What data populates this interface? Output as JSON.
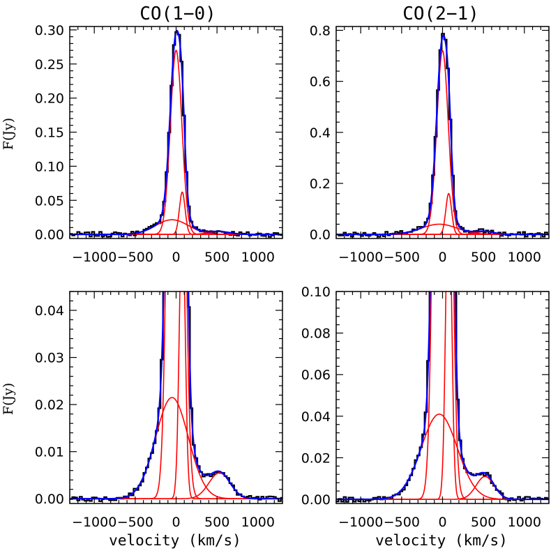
{
  "titles": {
    "left": "CO(1−0)",
    "right": "CO(2−1)"
  },
  "axis_labels": {
    "ylabel": "F(Jy)",
    "xlabel": "velocity (km/s)"
  },
  "colors": {
    "data": "#000000",
    "components": "#ff0000",
    "total": "#0000ff",
    "axes": "#000000"
  },
  "chart_data": [
    {
      "type": "line",
      "panel": "top-left",
      "title": "CO(1−0)",
      "ylabel": "F(Jy)",
      "xlabel": "",
      "xlim": [
        -1300,
        1300
      ],
      "ylim": [
        -0.006,
        0.305
      ],
      "xticks": [
        -1000,
        -500,
        0,
        500,
        1000
      ],
      "yticks": [
        0.0,
        0.05,
        0.1,
        0.15,
        0.2,
        0.25,
        0.3
      ],
      "ytick_labels": [
        "0.00",
        "0.05",
        "0.10",
        "0.15",
        "0.20",
        "0.25",
        "0.30"
      ],
      "components": [
        {
          "amplitude": 0.27,
          "center": 0,
          "sigma": 70
        },
        {
          "amplitude": 0.062,
          "center": 75,
          "sigma": 35
        },
        {
          "amplitude": 0.0215,
          "center": -50,
          "sigma": 200
        },
        {
          "amplitude": 0.004,
          "center": 530,
          "sigma": 130
        }
      ]
    },
    {
      "type": "line",
      "panel": "top-right",
      "title": "CO(2−1)",
      "ylabel": "",
      "xlabel": "",
      "xlim": [
        -1300,
        1300
      ],
      "ylim": [
        -0.016,
        0.815
      ],
      "xticks": [
        -1000,
        -500,
        0,
        500,
        1000
      ],
      "yticks": [
        0.0,
        0.2,
        0.4,
        0.6,
        0.8
      ],
      "ytick_labels": [
        "0.0",
        "0.2",
        "0.4",
        "0.6",
        "0.8"
      ],
      "components": [
        {
          "amplitude": 0.72,
          "center": 0,
          "sigma": 70
        },
        {
          "amplitude": 0.16,
          "center": 75,
          "sigma": 35
        },
        {
          "amplitude": 0.04,
          "center": -40,
          "sigma": 220
        },
        {
          "amplitude": 0.011,
          "center": 520,
          "sigma": 110
        }
      ]
    },
    {
      "type": "line",
      "panel": "bottom-left",
      "title": "",
      "ylabel": "F(Jy)",
      "xlabel": "velocity (km/s)",
      "xlim": [
        -1300,
        1300
      ],
      "ylim": [
        -0.001,
        0.044
      ],
      "xticks": [
        -1000,
        -500,
        0,
        500,
        1000
      ],
      "yticks": [
        0.0,
        0.01,
        0.02,
        0.03,
        0.04
      ],
      "ytick_labels": [
        "0.00",
        "0.01",
        "0.02",
        "0.03",
        "0.04"
      ],
      "components": [
        {
          "amplitude": 0.27,
          "center": 0,
          "sigma": 70
        },
        {
          "amplitude": 0.062,
          "center": 75,
          "sigma": 35
        },
        {
          "amplitude": 0.0215,
          "center": -50,
          "sigma": 200
        },
        {
          "amplitude": 0.0055,
          "center": 530,
          "sigma": 130
        }
      ]
    },
    {
      "type": "line",
      "panel": "bottom-right",
      "title": "",
      "ylabel": "",
      "xlabel": "velocity (km/s)",
      "xlim": [
        -1300,
        1300
      ],
      "ylim": [
        -0.002,
        0.1
      ],
      "xticks": [
        -1000,
        -500,
        0,
        500,
        1000
      ],
      "yticks": [
        0.0,
        0.02,
        0.04,
        0.06,
        0.08,
        0.1
      ],
      "ytick_labels": [
        "0.00",
        "0.02",
        "0.04",
        "0.06",
        "0.08",
        "0.10"
      ],
      "components": [
        {
          "amplitude": 0.72,
          "center": 0,
          "sigma": 70
        },
        {
          "amplitude": 0.16,
          "center": 75,
          "sigma": 35
        },
        {
          "amplitude": 0.041,
          "center": -40,
          "sigma": 220
        },
        {
          "amplitude": 0.011,
          "center": 520,
          "sigma": 110
        }
      ]
    }
  ]
}
